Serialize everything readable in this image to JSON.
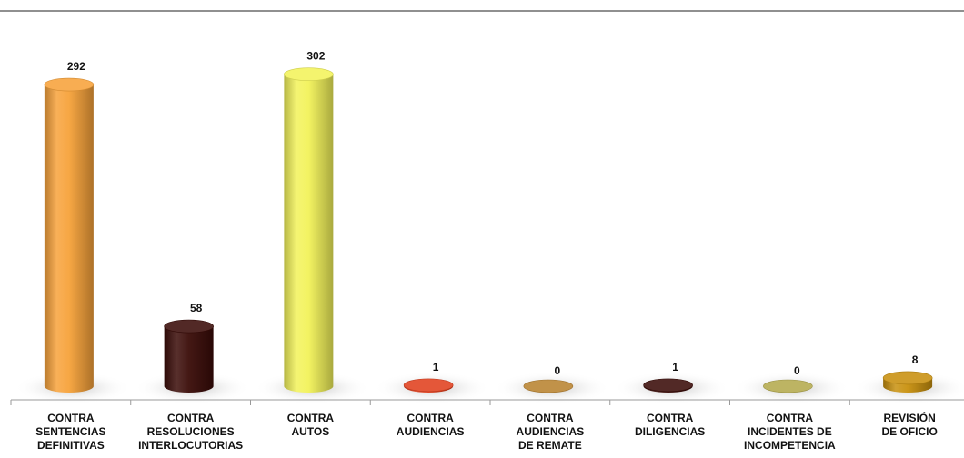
{
  "chart_data": {
    "type": "bar",
    "categories": [
      "CONTRA\nSENTENCIAS\nDEFINITIVAS",
      "CONTRA\nRESOLUCIONES\nINTERLOCUTORIAS",
      "CONTRA\nAUTOS",
      "CONTRA\nAUDIENCIAS",
      "CONTRA\nAUDIENCIAS\nDE REMATE",
      "CONTRA\nDILIGENCIAS",
      "CONTRA\nINCIDENTES DE\nINCOMPETENCIA",
      "REVISIÓN\nDE OFICIO"
    ],
    "values": [
      292,
      58,
      302,
      1,
      0,
      1,
      0,
      8
    ],
    "data_labels": [
      "292",
      "58",
      "302",
      "1",
      "0",
      "1",
      "0",
      "8"
    ],
    "colors": [
      "#f7a23a",
      "#3a0c08",
      "#f2f25a",
      "#e0401e",
      "#b98330",
      "#3a0c08",
      "#b4aa4e",
      "#c8900e"
    ],
    "ylim": [
      0,
      320
    ],
    "grid": false,
    "legend": "none"
  }
}
